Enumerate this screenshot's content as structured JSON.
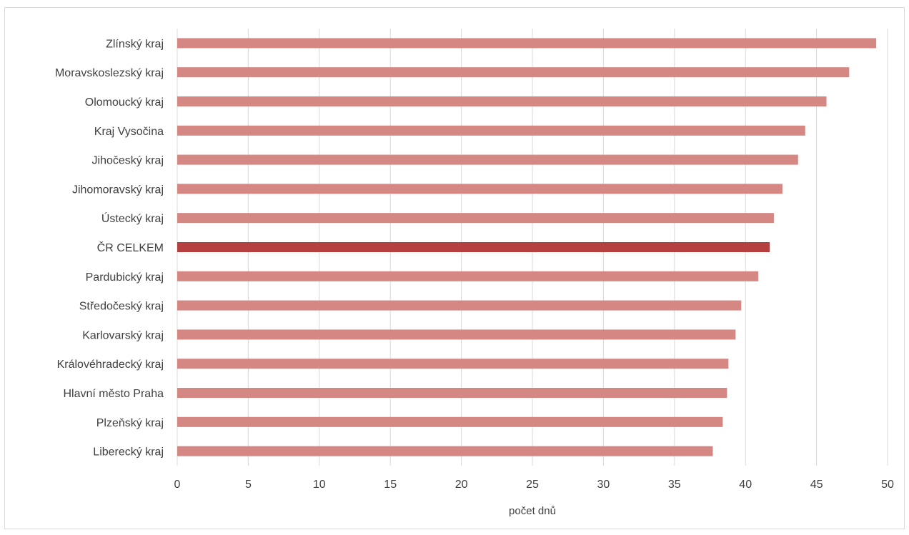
{
  "chart_data": {
    "type": "bar",
    "orientation": "horizontal",
    "categories": [
      "Zlínský kraj",
      "Moravskoslezský kraj",
      "Olomoucký kraj",
      "Kraj Vysočina",
      "Jihočeský kraj",
      "Jihomoravský kraj",
      "Ústecký kraj",
      "ČR CELKEM",
      "Pardubický kraj",
      "Středočeský kraj",
      "Karlovarský kraj",
      "Královéhradecký kraj",
      "Hlavní město Praha",
      "Plzeňský kraj",
      "Liberecký kraj"
    ],
    "values": [
      49.2,
      47.3,
      45.7,
      44.2,
      43.7,
      42.6,
      42.0,
      41.7,
      40.9,
      39.7,
      39.3,
      38.8,
      38.7,
      38.4,
      37.7
    ],
    "highlight_category": "ČR CELKEM",
    "xlabel": "počet dnů",
    "ylabel": "",
    "xlim": [
      0,
      50
    ],
    "xticks": [
      0,
      5,
      10,
      15,
      20,
      25,
      30,
      35,
      40,
      45,
      50
    ],
    "grid": "vertical",
    "colors": {
      "bar": "#d48783",
      "highlight": "#b4413f",
      "grid": "#d9d9d9",
      "text": "#404040"
    }
  }
}
